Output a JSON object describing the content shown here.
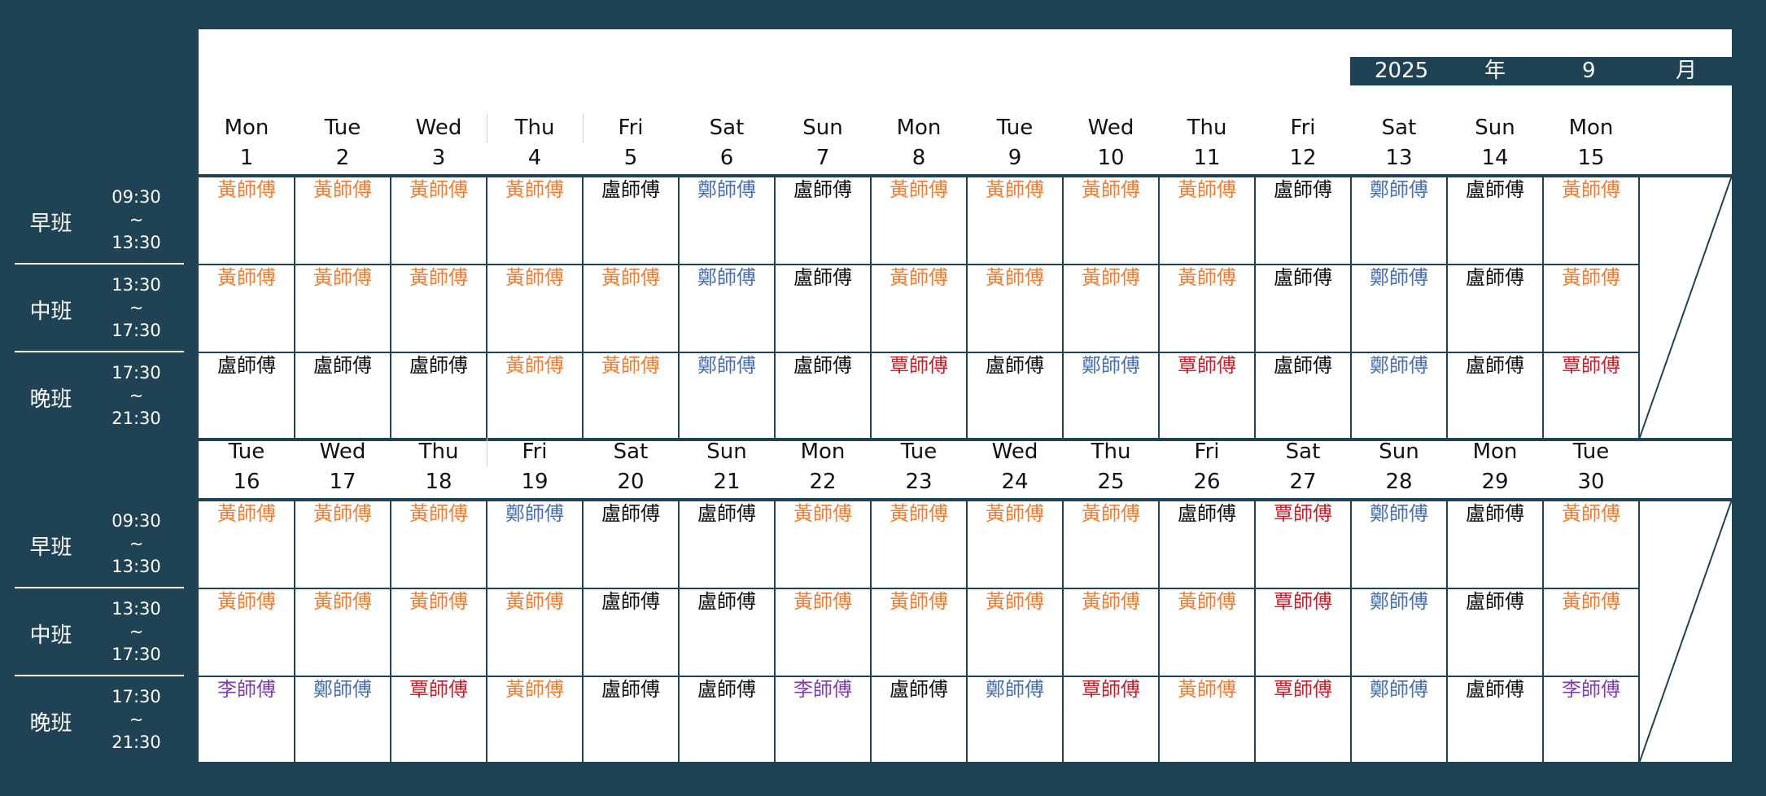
{
  "header": {
    "year": "2025",
    "year_unit": "年",
    "month": "9",
    "month_unit": "月"
  },
  "shifts": [
    {
      "name": "早班",
      "start": "09:30",
      "sep": "~",
      "end": "13:30"
    },
    {
      "name": "中班",
      "start": "13:30",
      "sep": "~",
      "end": "17:30"
    },
    {
      "name": "晚班",
      "start": "17:30",
      "sep": "~",
      "end": "21:30"
    }
  ],
  "colors": {
    "黃師傅": "#f27c2f",
    "盧師傅": "#111111",
    "鄭師傅": "#4a6fb5",
    "覃師傅": "#c8202c",
    "李師傅": "#7d3fb0",
    "frame": "#1f4255"
  },
  "blocks": [
    {
      "days": [
        {
          "dow": "Mon",
          "num": "1"
        },
        {
          "dow": "Tue",
          "num": "2"
        },
        {
          "dow": "Wed",
          "num": "3"
        },
        {
          "dow": "Thu",
          "num": "4"
        },
        {
          "dow": "Fri",
          "num": "5"
        },
        {
          "dow": "Sat",
          "num": "6"
        },
        {
          "dow": "Sun",
          "num": "7"
        },
        {
          "dow": "Mon",
          "num": "8"
        },
        {
          "dow": "Tue",
          "num": "9"
        },
        {
          "dow": "Wed",
          "num": "10"
        },
        {
          "dow": "Thu",
          "num": "11"
        },
        {
          "dow": "Fri",
          "num": "12"
        },
        {
          "dow": "Sat",
          "num": "13"
        },
        {
          "dow": "Sun",
          "num": "14"
        },
        {
          "dow": "Mon",
          "num": "15"
        }
      ],
      "rows": [
        [
          "黃師傅",
          "黃師傅",
          "黃師傅",
          "黃師傅",
          "盧師傅",
          "鄭師傅",
          "盧師傅",
          "黃師傅",
          "黃師傅",
          "黃師傅",
          "黃師傅",
          "盧師傅",
          "鄭師傅",
          "盧師傅",
          "黃師傅"
        ],
        [
          "黃師傅",
          "黃師傅",
          "黃師傅",
          "黃師傅",
          "黃師傅",
          "鄭師傅",
          "盧師傅",
          "黃師傅",
          "黃師傅",
          "黃師傅",
          "黃師傅",
          "盧師傅",
          "鄭師傅",
          "盧師傅",
          "黃師傅"
        ],
        [
          "盧師傅",
          "盧師傅",
          "盧師傅",
          "黃師傅",
          "黃師傅",
          "鄭師傅",
          "盧師傅",
          "覃師傅",
          "盧師傅",
          "鄭師傅",
          "覃師傅",
          "盧師傅",
          "鄭師傅",
          "盧師傅",
          "覃師傅"
        ]
      ]
    },
    {
      "days": [
        {
          "dow": "Tue",
          "num": "16"
        },
        {
          "dow": "Wed",
          "num": "17"
        },
        {
          "dow": "Thu",
          "num": "18"
        },
        {
          "dow": "Fri",
          "num": "19"
        },
        {
          "dow": "Sat",
          "num": "20"
        },
        {
          "dow": "Sun",
          "num": "21"
        },
        {
          "dow": "Mon",
          "num": "22"
        },
        {
          "dow": "Tue",
          "num": "23"
        },
        {
          "dow": "Wed",
          "num": "24"
        },
        {
          "dow": "Thu",
          "num": "25"
        },
        {
          "dow": "Fri",
          "num": "26"
        },
        {
          "dow": "Sat",
          "num": "27"
        },
        {
          "dow": "Sun",
          "num": "28"
        },
        {
          "dow": "Mon",
          "num": "29"
        },
        {
          "dow": "Tue",
          "num": "30"
        }
      ],
      "rows": [
        [
          "黃師傅",
          "黃師傅",
          "黃師傅",
          "鄭師傅",
          "盧師傅",
          "盧師傅",
          "黃師傅",
          "黃師傅",
          "黃師傅",
          "黃師傅",
          "盧師傅",
          "覃師傅",
          "鄭師傅",
          "盧師傅",
          "黃師傅"
        ],
        [
          "黃師傅",
          "黃師傅",
          "黃師傅",
          "黃師傅",
          "盧師傅",
          "盧師傅",
          "黃師傅",
          "黃師傅",
          "黃師傅",
          "黃師傅",
          "黃師傅",
          "覃師傅",
          "鄭師傅",
          "盧師傅",
          "黃師傅"
        ],
        [
          "李師傅",
          "鄭師傅",
          "覃師傅",
          "黃師傅",
          "盧師傅",
          "盧師傅",
          "李師傅",
          "盧師傅",
          "鄭師傅",
          "覃師傅",
          "黃師傅",
          "覃師傅",
          "鄭師傅",
          "盧師傅",
          "李師傅"
        ]
      ]
    }
  ]
}
